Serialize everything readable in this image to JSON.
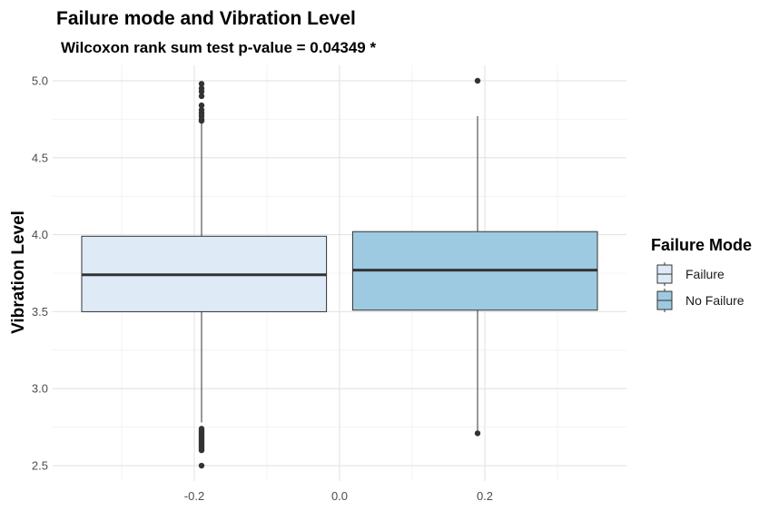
{
  "chart_data": {
    "type": "boxplot",
    "title": "Failure mode and Vibration Level",
    "subtitle": "Wilcoxon rank sum test p-value = 0.04349 *",
    "xlabel": "",
    "ylabel": "Vibration Level",
    "xlim": [
      -0.395,
      0.395
    ],
    "ylim": [
      2.4,
      5.1
    ],
    "x_ticks": [
      -0.2,
      0.0,
      0.2
    ],
    "x_tick_labels": [
      "-0.2",
      "0.0",
      "0.2"
    ],
    "y_ticks": [
      2.5,
      3.0,
      3.5,
      4.0,
      4.5,
      5.0
    ],
    "y_tick_labels": [
      "2.5",
      "3.0",
      "3.5",
      "4.0",
      "4.5",
      "5.0"
    ],
    "grid": true,
    "legend_position": "right",
    "legend_title": "Failure Mode",
    "series": [
      {
        "name": "Failure",
        "color": "#deebf7",
        "x_center": -0.19,
        "x_range": [
          -0.355,
          -0.018
        ],
        "q1": 3.5,
        "median": 3.74,
        "q3": 3.99,
        "whisker_low": 2.78,
        "whisker_high": 4.73,
        "outliers": [
          2.5,
          2.6,
          2.61,
          2.62,
          2.63,
          2.64,
          2.65,
          2.66,
          2.67,
          2.68,
          2.69,
          2.7,
          2.71,
          2.72,
          2.73,
          2.74,
          4.74,
          4.75,
          4.77,
          4.79,
          4.81,
          4.84,
          4.9,
          4.93,
          4.95,
          4.98
        ]
      },
      {
        "name": "No Failure",
        "color": "#9ecae1",
        "x_center": 0.19,
        "x_range": [
          0.018,
          0.355
        ],
        "q1": 3.51,
        "median": 3.77,
        "q3": 4.02,
        "whisker_low": 2.72,
        "whisker_high": 4.77,
        "outliers": [
          2.71,
          5.0
        ]
      }
    ]
  }
}
